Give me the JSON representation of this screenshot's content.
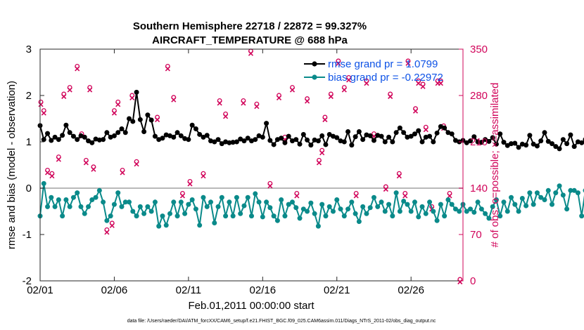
{
  "chart_data": {
    "type": "line",
    "title": "Southern Hemisphere 22718 / 22872 = 99.327%",
    "subtitle": "AIRCRAFT_TEMPERATURE @ 688 hPa",
    "xlabel": "Feb.01,2011 00:00:00 start",
    "ylabel": "rmse and bias (model - observation)",
    "ylabel_right": "# of obs: o=possible; ×=assimilated",
    "xlim": [
      0,
      28.5
    ],
    "ylim": [
      -2,
      3
    ],
    "ylim_right": [
      0,
      350
    ],
    "x_ticks": [
      {
        "value": 0,
        "label": "02/01"
      },
      {
        "value": 5,
        "label": "02/06"
      },
      {
        "value": 10,
        "label": "02/11"
      },
      {
        "value": 15,
        "label": "02/16"
      },
      {
        "value": 20,
        "label": "02/21"
      },
      {
        "value": 25,
        "label": "02/26"
      }
    ],
    "y_ticks": [
      {
        "value": -2,
        "label": "-2"
      },
      {
        "value": -1,
        "label": "-1"
      },
      {
        "value": 0,
        "label": "0"
      },
      {
        "value": 1,
        "label": "1"
      },
      {
        "value": 2,
        "label": "2"
      },
      {
        "value": 3,
        "label": "3"
      }
    ],
    "y_ticks_right": [
      {
        "value": 0,
        "label": "0"
      },
      {
        "value": 70,
        "label": "70"
      },
      {
        "value": 140,
        "label": "140"
      },
      {
        "value": 210,
        "label": "210"
      },
      {
        "value": 280,
        "label": "280"
      },
      {
        "value": 350,
        "label": "350"
      }
    ],
    "legend": [
      "rmse grand pr = 1.0799",
      "bias grand pr = -0.22972"
    ],
    "legend_position": "top-right",
    "zero_line": 0,
    "time_step_days": 0.25,
    "series": [
      {
        "name": "rmse",
        "color": "#000000",
        "axis": "left",
        "values": [
          1.35,
          1.05,
          1.18,
          1.03,
          1.1,
          1.05,
          1.14,
          1.36,
          1.2,
          1.12,
          1.05,
          1.13,
          1.1,
          1.02,
          0.98,
          1.06,
          1.04,
          1.05,
          1.2,
          1.1,
          1.13,
          1.2,
          1.28,
          1.2,
          1.5,
          1.44,
          2.07,
          1.48,
          1.22,
          1.58,
          1.47,
          1.12,
          1.05,
          1.08,
          1.15,
          1.13,
          1.1,
          1.2,
          1.13,
          1.07,
          1.05,
          1.36,
          1.28,
          1.16,
          1.1,
          1.14,
          1.02,
          1.0,
          1.05,
          0.96,
          1.0,
          0.98,
          0.99,
          1.0,
          1.06,
          1.02,
          1.08,
          1.02,
          1.05,
          1.13,
          1.1,
          1.4,
          1.03,
          0.94,
          1.05,
          1.08,
          0.98,
          1.12,
          1.02,
          1.05,
          0.95,
          1.16,
          1.04,
          0.93,
          1.04,
          1.02,
          1.13,
          0.94,
          1.16,
          1.12,
          1.09,
          1.02,
          1.0,
          1.22,
          0.93,
          1.11,
          1.22,
          1.05,
          1.15,
          1.13,
          1.03,
          1.14,
          1.12,
          1.0,
          1.1,
          1.0,
          1.2,
          1.3,
          1.2,
          1.1,
          1.12,
          1.17,
          1.24,
          1.0,
          1.1,
          1.12,
          1.0,
          1.19,
          1.33,
          1.3,
          1.2,
          1.17,
          1.03,
          1.0,
          1.03,
          0.98,
          1.02,
          1.11,
          1.0,
          0.99,
          1.05,
          1.01,
          1.09,
          0.95,
          1.17,
          0.99,
          0.92,
          0.96,
          0.97,
          0.88,
          0.95,
          0.93,
          1.14,
          0.95,
          0.91,
          1.02,
          1.2,
          1.01,
          0.96,
          0.9,
          0.85,
          1.05,
          0.96,
          1.15,
          0.9,
          1.0,
          0.98,
          1.05,
          0.88,
          1.0,
          1.08,
          0.9,
          0.85,
          0.85,
          0.88,
          1.12
        ]
      },
      {
        "name": "bias",
        "color": "#0a8a8a",
        "axis": "left",
        "values": [
          -0.6,
          0.1,
          -0.4,
          -0.2,
          -0.4,
          -0.25,
          -0.6,
          -0.25,
          -0.4,
          -0.2,
          -0.1,
          -0.4,
          -0.55,
          -0.4,
          -0.25,
          -0.2,
          -0.05,
          -0.3,
          -0.7,
          -0.6,
          -0.35,
          -0.1,
          -0.4,
          -0.3,
          -0.3,
          -0.5,
          -0.6,
          -0.4,
          -0.55,
          -0.4,
          -0.5,
          -0.3,
          -0.82,
          -0.6,
          -0.8,
          -0.55,
          -0.3,
          -0.6,
          -0.3,
          -0.55,
          -0.35,
          -0.25,
          -0.45,
          -0.8,
          -0.2,
          -0.4,
          -0.3,
          -0.75,
          -0.4,
          -0.2,
          -0.6,
          -0.3,
          -0.6,
          -0.2,
          -0.55,
          -0.38,
          -0.2,
          -0.6,
          -0.12,
          -0.3,
          -0.62,
          -0.3,
          -0.42,
          -0.6,
          -0.7,
          -0.25,
          -0.6,
          -0.35,
          -0.3,
          -0.42,
          -0.65,
          -0.45,
          -0.5,
          -0.32,
          -0.55,
          -0.82,
          -0.35,
          -0.6,
          -0.4,
          -0.5,
          -0.25,
          -0.45,
          -0.6,
          -0.45,
          -0.3,
          -0.55,
          -0.72,
          -0.4,
          -0.55,
          -0.42,
          -0.2,
          -0.4,
          -0.3,
          -0.5,
          -0.35,
          -0.6,
          -0.1,
          -0.5,
          -0.28,
          -0.35,
          -0.5,
          -0.3,
          -0.62,
          -0.4,
          -0.55,
          -0.3,
          -0.5,
          -0.7,
          -0.35,
          -0.6,
          -0.25,
          -0.35,
          -0.45,
          -0.5,
          -0.35,
          -0.5,
          -0.45,
          -0.52,
          -0.3,
          -0.45,
          -0.55,
          -0.65,
          -0.4,
          -0.25,
          -0.6,
          -0.3,
          -0.5,
          -0.2,
          -0.35,
          -0.5,
          -0.22,
          -0.38,
          -0.1,
          -0.35,
          -0.1,
          -0.2,
          -0.25,
          -0.05,
          -0.35,
          -0.1,
          0.05,
          -0.15,
          -0.45,
          -0.05,
          -0.05,
          -0.1,
          -0.6,
          -0.05,
          -0.3,
          -0.4,
          0.05,
          -0.3,
          -0.4,
          -0.05,
          -0.05,
          -0.15,
          -0.05,
          -0.05,
          -0.55,
          -0.3
        ]
      },
      {
        "name": "possible",
        "color": "#d1045a",
        "axis": "right",
        "marker": "circle",
        "x": [
          0.05,
          0.25,
          0.5,
          0.8,
          1.25,
          1.6,
          2.0,
          2.5,
          2.8,
          3.1,
          3.35,
          3.6,
          4.5,
          4.85,
          5.0,
          5.25,
          5.55,
          6.2,
          6.5,
          7.9,
          8.6,
          9.0,
          9.6,
          10.1,
          11.0,
          12.1,
          12.5,
          13.7,
          14.2,
          14.6,
          15.5,
          16.1,
          16.5,
          17.0,
          17.3,
          18.0,
          18.8,
          19.0,
          19.2,
          19.6,
          20.1,
          20.5,
          20.8,
          21.3,
          22.0,
          22.5,
          23.3,
          23.6,
          24.2,
          24.6,
          24.8,
          25.3,
          25.5,
          25.8,
          26.0,
          26.4,
          26.8,
          27.0,
          27.2,
          27.6,
          28.3
        ],
        "values": [
          268,
          255,
          165,
          160,
          185,
          280,
          290,
          322,
          220,
          180,
          290,
          170,
          75,
          85,
          255,
          268,
          165,
          278,
          178,
          245,
          322,
          275,
          130,
          148,
          160,
          270,
          250,
          270,
          345,
          265,
          145,
          278,
          215,
          290,
          130,
          273,
          180,
          195,
          245,
          280,
          330,
          290,
          305,
          130,
          300,
          220,
          140,
          280,
          160,
          130,
          330,
          258,
          300,
          295,
          230,
          110,
          300,
          300,
          232,
          130,
          0
        ]
      },
      {
        "name": "assimilated",
        "color": "#d1045a",
        "axis": "right",
        "marker": "x",
        "x": [
          0.05,
          0.25,
          0.5,
          0.8,
          1.25,
          1.6,
          2.0,
          2.5,
          2.8,
          3.1,
          3.35,
          3.6,
          4.5,
          4.85,
          5.0,
          5.25,
          5.55,
          6.2,
          6.5,
          7.9,
          8.6,
          9.0,
          9.6,
          10.1,
          11.0,
          12.1,
          12.5,
          13.7,
          14.2,
          14.6,
          15.5,
          16.1,
          16.5,
          17.0,
          17.3,
          18.0,
          18.8,
          19.0,
          19.2,
          19.6,
          20.1,
          20.5,
          20.8,
          21.3,
          22.0,
          22.5,
          23.3,
          23.6,
          24.2,
          24.6,
          24.8,
          25.3,
          25.5,
          25.8,
          26.0,
          26.4,
          26.8,
          27.0,
          27.2,
          27.6,
          28.3
        ],
        "values": [
          268,
          255,
          165,
          160,
          185,
          280,
          290,
          322,
          220,
          180,
          290,
          170,
          75,
          85,
          255,
          268,
          165,
          278,
          178,
          245,
          322,
          275,
          130,
          148,
          160,
          270,
          250,
          270,
          345,
          265,
          145,
          278,
          215,
          290,
          130,
          273,
          180,
          195,
          245,
          280,
          330,
          290,
          305,
          130,
          300,
          220,
          140,
          280,
          160,
          130,
          330,
          258,
          300,
          295,
          230,
          110,
          300,
          300,
          232,
          130,
          0
        ]
      }
    ]
  },
  "footer": "data file: /Users/raeder/DAI/ATM_forcXX/CAM6_setup/f.e21.FHIST_BGC.f09_025.CAM6assim.011/Diags_NTrS_2011-02/obs_diag_output.nc"
}
